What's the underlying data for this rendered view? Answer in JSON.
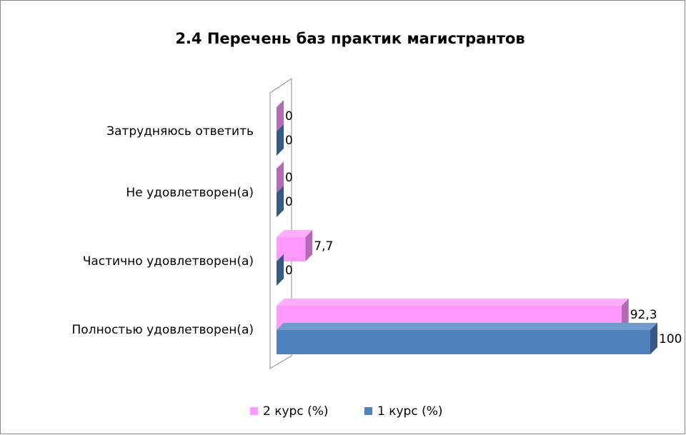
{
  "chart_data": {
    "type": "bar3d_horizontal",
    "title": "2.4 Перечень баз практик  магистрантов",
    "categories": [
      "Полностью удовлетворен(а)",
      "Частично удовлетворен(а)",
      "Не удовлетворен(а)",
      "Затрудняюсь ответить"
    ],
    "series": [
      {
        "name": "2 курс (%)",
        "color": "#ff99ff",
        "values": [
          92.3,
          7.7,
          0,
          0
        ],
        "value_labels": [
          "92,3",
          "7,7",
          "0",
          "0"
        ]
      },
      {
        "name": "1 курс (%)",
        "color": "#4f81bd",
        "values": [
          100,
          0,
          0,
          0
        ]
      }
    ],
    "xlim": [
      0,
      100
    ],
    "legend": "bottom"
  }
}
